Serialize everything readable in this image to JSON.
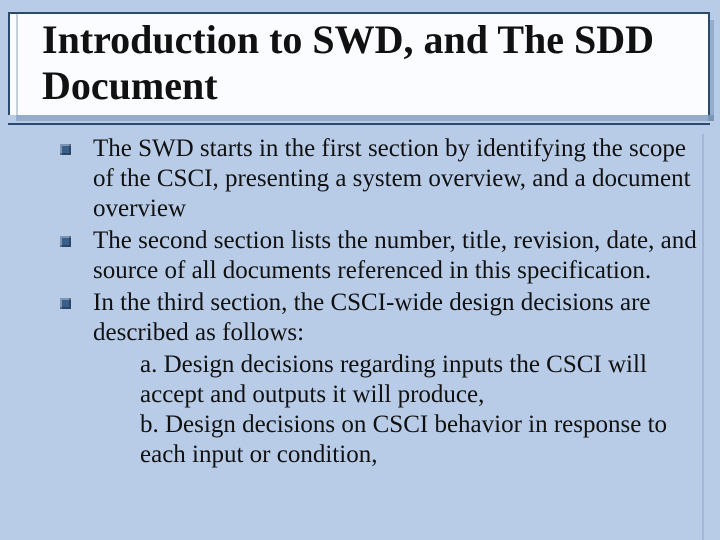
{
  "colors": {
    "slide_background": "#b8cce8",
    "title_panel_background": "#fafcff",
    "rule_color": "#2a4a70",
    "shadow_color": "rgba(42,74,112,0.25)",
    "bullet_fill": "#3a5f8a",
    "text_color": "#111111"
  },
  "typography": {
    "title_fontsize_pt": 30,
    "body_fontsize_pt": 19,
    "font_family": "Times New Roman"
  },
  "title": "Introduction to SWD, and The SDD Document",
  "bullets": [
    {
      "text": "The SWD starts in the first section by identifying the scope of the CSCI, presenting a system overview, and a document overview"
    },
    {
      "text": "The second section lists the number, title, revision, date, and source of all documents referenced in this specification."
    },
    {
      "text": "In the third section, the CSCI-wide design decisions are described as follows:",
      "subitems": [
        "a. Design decisions regarding inputs the CSCI will accept and outputs it will produce,",
        "b. Design decisions on CSCI behavior in response to each input or condition,"
      ]
    }
  ]
}
